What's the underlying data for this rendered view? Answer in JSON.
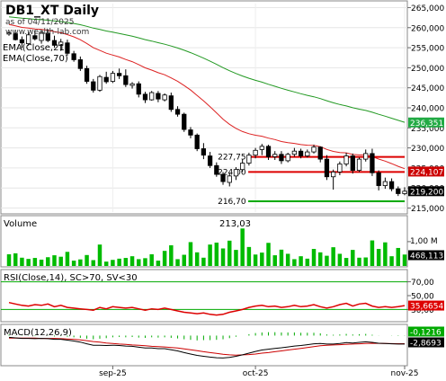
{
  "header": {
    "symbol_title": "DB1_XT Daily",
    "as_of": "as of 04/11/2025",
    "watermark": "www.wealth-lab.com",
    "ema21_label": "EMA(Close,21)",
    "ema70_label": "EMA(Close,70)"
  },
  "colors": {
    "up_candle": "#00cc00",
    "down_candle": "#cc0000",
    "ema21": "#dd2222",
    "ema70": "#229922",
    "sr_red": "#dd0000",
    "sr_green": "#00aa00",
    "volume": "#00bb00",
    "rsi": "#dd0000",
    "macd": "#000000",
    "macd_signal": "#cc0000",
    "macd_hist": "#00aa00",
    "ema70_badge": "#22aa44",
    "price_badge": "#000000",
    "ema21_badge": "#cc0000",
    "volume_badge": "#000000",
    "rsi_badge": "#dd0000",
    "macd_badge_1": "#00aa00",
    "macd_badge_2": "#000000"
  },
  "chart_data": [
    {
      "type": "candlestick",
      "title": "DB1_XT Daily",
      "ylim": [
        214,
        266
      ],
      "y_ticks": [
        "265,000",
        "260,000",
        "255,000",
        "250,000",
        "245,000",
        "240,000",
        "235,000",
        "230,000",
        "225,000",
        "220,000",
        "215,000"
      ],
      "y_tick_values": [
        265,
        260,
        255,
        250,
        245,
        240,
        235,
        230,
        225,
        220,
        215
      ],
      "x_ticks": [
        {
          "label": "sep-25",
          "index": 16
        },
        {
          "label": "oct-25",
          "index": 38
        },
        {
          "label": "nov-25",
          "index": 61
        }
      ],
      "candles": [
        {
          "o": 258.4,
          "h": 259.0,
          "l": 258.0,
          "c": 258.7
        },
        {
          "o": 258.5,
          "h": 258.8,
          "l": 256.8,
          "c": 257.0
        },
        {
          "o": 257.0,
          "h": 257.8,
          "l": 255.0,
          "c": 256.2
        },
        {
          "o": 256.0,
          "h": 258.8,
          "l": 255.5,
          "c": 258.2
        },
        {
          "o": 258.0,
          "h": 259.4,
          "l": 256.8,
          "c": 257.2
        },
        {
          "o": 256.8,
          "h": 259.2,
          "l": 256.0,
          "c": 258.8
        },
        {
          "o": 258.6,
          "h": 259.6,
          "l": 256.4,
          "c": 256.8
        },
        {
          "o": 256.8,
          "h": 258.0,
          "l": 255.0,
          "c": 255.6
        },
        {
          "o": 255.6,
          "h": 257.2,
          "l": 254.2,
          "c": 256.4
        },
        {
          "o": 256.2,
          "h": 257.0,
          "l": 253.0,
          "c": 253.6
        },
        {
          "o": 253.5,
          "h": 254.2,
          "l": 251.5,
          "c": 252.0
        },
        {
          "o": 252.0,
          "h": 252.8,
          "l": 249.2,
          "c": 249.8
        },
        {
          "o": 249.8,
          "h": 250.5,
          "l": 246.0,
          "c": 246.6
        },
        {
          "o": 246.5,
          "h": 247.2,
          "l": 243.8,
          "c": 244.4
        },
        {
          "o": 244.4,
          "h": 248.2,
          "l": 244.0,
          "c": 247.8
        },
        {
          "o": 247.6,
          "h": 249.0,
          "l": 246.0,
          "c": 246.5
        },
        {
          "o": 246.6,
          "h": 249.2,
          "l": 246.2,
          "c": 248.6
        },
        {
          "o": 248.6,
          "h": 249.8,
          "l": 247.2,
          "c": 248.0
        },
        {
          "o": 248.0,
          "h": 249.6,
          "l": 245.2,
          "c": 245.8
        },
        {
          "o": 245.6,
          "h": 246.4,
          "l": 244.8,
          "c": 246.0
        },
        {
          "o": 246.0,
          "h": 246.6,
          "l": 242.6,
          "c": 243.4
        },
        {
          "o": 243.4,
          "h": 244.0,
          "l": 241.2,
          "c": 242.0
        },
        {
          "o": 242.0,
          "h": 244.2,
          "l": 241.8,
          "c": 243.8
        },
        {
          "o": 243.6,
          "h": 244.2,
          "l": 241.4,
          "c": 242.2
        },
        {
          "o": 242.0,
          "h": 243.6,
          "l": 241.6,
          "c": 243.2
        },
        {
          "o": 243.0,
          "h": 243.8,
          "l": 239.0,
          "c": 239.6
        },
        {
          "o": 239.6,
          "h": 240.4,
          "l": 237.8,
          "c": 238.4
        },
        {
          "o": 238.4,
          "h": 238.8,
          "l": 234.0,
          "c": 234.6
        },
        {
          "o": 234.5,
          "h": 235.2,
          "l": 232.4,
          "c": 233.2
        },
        {
          "o": 233.2,
          "h": 233.6,
          "l": 229.2,
          "c": 229.8
        },
        {
          "o": 229.8,
          "h": 231.2,
          "l": 227.2,
          "c": 228.2
        },
        {
          "o": 228.0,
          "h": 229.0,
          "l": 225.0,
          "c": 225.6
        },
        {
          "o": 225.6,
          "h": 226.4,
          "l": 222.8,
          "c": 223.4
        },
        {
          "o": 223.4,
          "h": 224.0,
          "l": 220.8,
          "c": 221.6
        },
        {
          "o": 221.4,
          "h": 223.8,
          "l": 220.4,
          "c": 223.0
        },
        {
          "o": 223.0,
          "h": 225.2,
          "l": 222.0,
          "c": 224.6
        },
        {
          "o": 224.6,
          "h": 227.2,
          "l": 224.0,
          "c": 226.2
        },
        {
          "o": 226.2,
          "h": 228.8,
          "l": 225.6,
          "c": 228.2
        },
        {
          "o": 228.2,
          "h": 230.0,
          "l": 227.4,
          "c": 229.4
        },
        {
          "o": 229.6,
          "h": 231.0,
          "l": 228.2,
          "c": 230.4
        },
        {
          "o": 230.4,
          "h": 230.8,
          "l": 227.0,
          "c": 227.8
        },
        {
          "o": 227.8,
          "h": 229.2,
          "l": 227.0,
          "c": 228.4
        },
        {
          "o": 228.4,
          "h": 229.2,
          "l": 226.0,
          "c": 226.8
        },
        {
          "o": 226.8,
          "h": 228.8,
          "l": 226.4,
          "c": 228.4
        },
        {
          "o": 228.4,
          "h": 230.0,
          "l": 227.8,
          "c": 229.2
        },
        {
          "o": 229.2,
          "h": 229.8,
          "l": 227.4,
          "c": 228.0
        },
        {
          "o": 228.0,
          "h": 229.6,
          "l": 227.6,
          "c": 229.0
        },
        {
          "o": 229.0,
          "h": 230.8,
          "l": 228.6,
          "c": 230.2
        },
        {
          "o": 230.2,
          "h": 230.4,
          "l": 226.4,
          "c": 227.2
        },
        {
          "o": 227.2,
          "h": 228.2,
          "l": 222.0,
          "c": 222.8
        },
        {
          "o": 222.8,
          "h": 224.6,
          "l": 219.6,
          "c": 224.0
        },
        {
          "o": 224.0,
          "h": 226.6,
          "l": 223.2,
          "c": 226.0
        },
        {
          "o": 226.0,
          "h": 228.8,
          "l": 225.4,
          "c": 228.0
        },
        {
          "o": 228.0,
          "h": 228.6,
          "l": 223.6,
          "c": 224.4
        },
        {
          "o": 224.4,
          "h": 227.6,
          "l": 224.0,
          "c": 227.2
        },
        {
          "o": 227.2,
          "h": 229.6,
          "l": 226.6,
          "c": 228.6
        },
        {
          "o": 228.6,
          "h": 229.8,
          "l": 223.0,
          "c": 223.8
        },
        {
          "o": 223.8,
          "h": 224.4,
          "l": 219.4,
          "c": 220.6
        },
        {
          "o": 220.6,
          "h": 222.6,
          "l": 219.8,
          "c": 221.6
        },
        {
          "o": 221.6,
          "h": 222.4,
          "l": 219.2,
          "c": 219.8
        },
        {
          "o": 219.8,
          "h": 220.4,
          "l": 218.0,
          "c": 218.6
        },
        {
          "o": 218.6,
          "h": 220.2,
          "l": 218.2,
          "c": 219.2
        }
      ],
      "ema21_start": 261.0,
      "ema70_start": 262.8,
      "levels": [
        {
          "value": 227.75,
          "label": "227,75",
          "color_key": "sr_red",
          "from_index": 38
        },
        {
          "value": 224.0,
          "label": "224,00",
          "color_key": "sr_red",
          "from_index": 38
        },
        {
          "value": 216.7,
          "label": "216,70",
          "color_key": "sr_green",
          "from_index": 38
        }
      ],
      "badges": [
        {
          "value": 236.351,
          "label": "236,351",
          "color_key": "ema70_badge"
        },
        {
          "value": 224.107,
          "label": "224,107",
          "color_key": "ema21_badge"
        },
        {
          "value": 219.2,
          "label": "219,200",
          "color_key": "price_badge"
        }
      ]
    },
    {
      "type": "bar",
      "title": "Volume",
      "max_label": "213,03",
      "scale_label": "1,00 M",
      "badge": "468,113",
      "ylim": [
        0,
        1.55
      ],
      "values": [
        0.48,
        0.52,
        0.34,
        0.29,
        0.33,
        0.26,
        0.36,
        0.44,
        0.38,
        0.58,
        0.22,
        0.27,
        0.45,
        0.24,
        0.88,
        0.18,
        0.25,
        0.3,
        0.33,
        0.4,
        0.28,
        0.32,
        0.48,
        0.22,
        0.62,
        0.85,
        0.28,
        0.46,
        0.98,
        0.56,
        0.34,
        0.88,
        0.96,
        0.72,
        1.04,
        0.66,
        1.54,
        0.78,
        0.47,
        0.55,
        0.95,
        0.44,
        0.67,
        0.5,
        0.28,
        0.4,
        0.3,
        0.7,
        0.56,
        0.42,
        0.77,
        0.5,
        0.33,
        0.66,
        0.34,
        0.35,
        1.05,
        0.7,
        0.97,
        0.4,
        0.74,
        0.47
      ]
    },
    {
      "type": "line",
      "title": "RSI(Close,14), SC>70, SV<30",
      "ylim": [
        15,
        85
      ],
      "y_ticks": [
        "70,00",
        "50,00",
        "30,00"
      ],
      "y_tick_values": [
        70,
        50,
        30
      ],
      "badge": "35,6654",
      "values": [
        40,
        38,
        36,
        35,
        37,
        36,
        38,
        34,
        36,
        33,
        32,
        31,
        30,
        29,
        33,
        31,
        34,
        33,
        32,
        33,
        31,
        29,
        31,
        30,
        32,
        30,
        28,
        26,
        25,
        24,
        25,
        23,
        22,
        23,
        26,
        28,
        30,
        33,
        35,
        36,
        34,
        35,
        33,
        34,
        36,
        34,
        35,
        37,
        34,
        32,
        34,
        37,
        39,
        35,
        38,
        39,
        35,
        33,
        34,
        33,
        34,
        35.67
      ]
    },
    {
      "type": "line",
      "title": "MACD(12,26,9)",
      "ylim": [
        -10,
        3
      ],
      "badges": [
        {
          "label": "-0,1216",
          "color_key": "macd_badge_1",
          "value": -0.1216
        },
        {
          "label": "-2,8693",
          "color_key": "macd_badge_2",
          "value": -2.8693
        }
      ],
      "series": [
        {
          "values": [
            -0.6,
            -0.8,
            -1.0,
            -1.0,
            -1.1,
            -1.0,
            -1.1,
            -1.3,
            -1.3,
            -1.6,
            -1.9,
            -2.3,
            -2.9,
            -3.4,
            -3.4,
            -3.5,
            -3.4,
            -3.5,
            -3.7,
            -3.8,
            -4.1,
            -4.4,
            -4.4,
            -4.6,
            -4.6,
            -5.0,
            -5.4,
            -6.0,
            -6.5,
            -7.0,
            -7.3,
            -7.6,
            -7.8,
            -7.9,
            -7.7,
            -7.3,
            -6.8,
            -6.2,
            -5.6,
            -5.1,
            -4.8,
            -4.5,
            -4.3,
            -4.0,
            -3.7,
            -3.5,
            -3.2,
            -2.9,
            -2.8,
            -3.0,
            -3.0,
            -2.8,
            -2.5,
            -2.6,
            -2.4,
            -2.2,
            -2.4,
            -2.7,
            -2.8,
            -2.9,
            -3.0,
            -2.98
          ]
        },
        {
          "values": [
            -0.9,
            -0.9,
            -0.9,
            -0.9,
            -0.9,
            -1.0,
            -1.0,
            -1.0,
            -1.1,
            -1.2,
            -1.3,
            -1.5,
            -1.8,
            -2.1,
            -2.3,
            -2.6,
            -2.8,
            -3.0,
            -3.1,
            -3.3,
            -3.4,
            -3.6,
            -3.8,
            -3.9,
            -4.0,
            -4.2,
            -4.4,
            -4.7,
            -5.0,
            -5.3,
            -5.7,
            -6.0,
            -6.3,
            -6.6,
            -6.8,
            -6.9,
            -6.8,
            -6.7,
            -6.5,
            -6.2,
            -6.0,
            -5.7,
            -5.4,
            -5.1,
            -4.8,
            -4.5,
            -4.2,
            -3.9,
            -3.6,
            -3.4,
            -3.3,
            -3.2,
            -3.1,
            -3.0,
            -2.9,
            -2.8,
            -2.7,
            -2.75,
            -2.8,
            -2.83,
            -2.86,
            -2.87
          ]
        }
      ]
    }
  ]
}
